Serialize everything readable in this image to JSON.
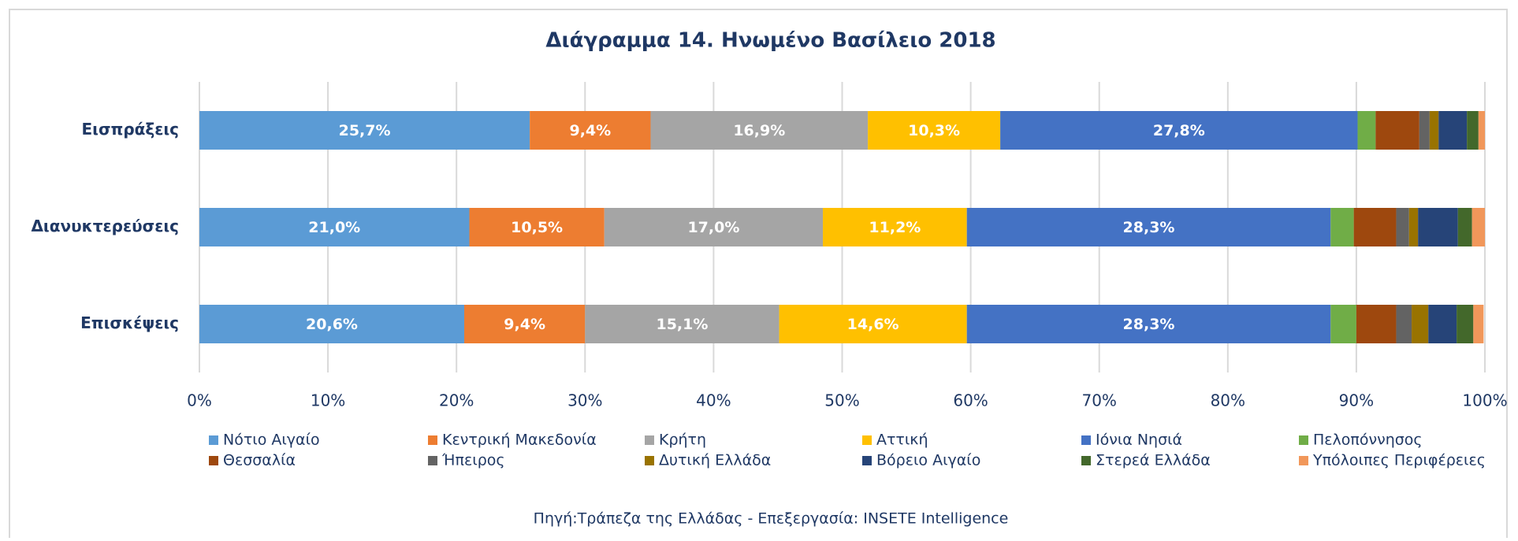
{
  "chart_data": {
    "type": "stacked-bar-horizontal",
    "title": "Διάγραμμα 14. Ηνωμένο Βασίλειο 2018",
    "categories": [
      "Εισπράξεις",
      "Διανυκτερεύσεις",
      "Επισκέψεις"
    ],
    "series": [
      {
        "name": "Νότιο Αιγαίο",
        "color": "#5b9bd5",
        "values": [
          25.7,
          21.0,
          20.6
        ],
        "value_labels": [
          "25,7%",
          "21,0%",
          "20,6%"
        ]
      },
      {
        "name": "Κεντρική Μακεδονία",
        "color": "#ed7d31",
        "values": [
          9.4,
          10.5,
          9.4
        ],
        "value_labels": [
          "9,4%",
          "10,5%",
          "9,4%"
        ]
      },
      {
        "name": "Κρήτη",
        "color": "#a5a5a5",
        "values": [
          16.9,
          17.0,
          15.1
        ],
        "value_labels": [
          "16,9%",
          "17,0%",
          "15,1%"
        ]
      },
      {
        "name": "Αττική",
        "color": "#ffc000",
        "values": [
          10.3,
          11.2,
          14.6
        ],
        "value_labels": [
          "10,3%",
          "11,2%",
          "14,6%"
        ]
      },
      {
        "name": "Ιόνια Νησιά",
        "color": "#4472c4",
        "values": [
          27.8,
          28.3,
          28.3
        ],
        "value_labels": [
          "27,8%",
          "28,3%",
          "28,3%"
        ]
      },
      {
        "name": "Πελοπόννησος",
        "color": "#70ad47",
        "values": [
          1.4,
          1.8,
          2.0
        ]
      },
      {
        "name": "Θεσσαλία",
        "color": "#9e480e",
        "values": [
          3.4,
          3.3,
          3.1
        ]
      },
      {
        "name": "Ήπειρος",
        "color": "#636363",
        "values": [
          0.8,
          1.0,
          1.2
        ]
      },
      {
        "name": "Δυτική Ελλάδα",
        "color": "#997300",
        "values": [
          0.7,
          0.7,
          1.3
        ]
      },
      {
        "name": "Βόρειο Αιγαίο",
        "color": "#264478",
        "values": [
          2.2,
          3.1,
          2.2
        ]
      },
      {
        "name": "Στερεά Ελλάδα",
        "color": "#43682b",
        "values": [
          0.9,
          1.1,
          1.3
        ]
      },
      {
        "name": "Υπόλοιπες Περιφέρειες",
        "color": "#f1975a",
        "values": [
          0.5,
          1.0,
          0.8
        ]
      }
    ],
    "xlim": [
      0,
      100
    ],
    "xticks": [
      {
        "value": 0,
        "label": "0%"
      },
      {
        "value": 10,
        "label": "10%"
      },
      {
        "value": 20,
        "label": "20%"
      },
      {
        "value": 30,
        "label": "30%"
      },
      {
        "value": 40,
        "label": "40%"
      },
      {
        "value": 50,
        "label": "50%"
      },
      {
        "value": 60,
        "label": "60%"
      },
      {
        "value": 70,
        "label": "70%"
      },
      {
        "value": 80,
        "label": "80%"
      },
      {
        "value": 90,
        "label": "90%"
      },
      {
        "value": 100,
        "label": "100%"
      }
    ],
    "grid": true,
    "legend": "bottom",
    "source": "Πηγή:Τράπεζα της Ελλάδας - Επεξεργασία: INSETE Intelligence"
  }
}
